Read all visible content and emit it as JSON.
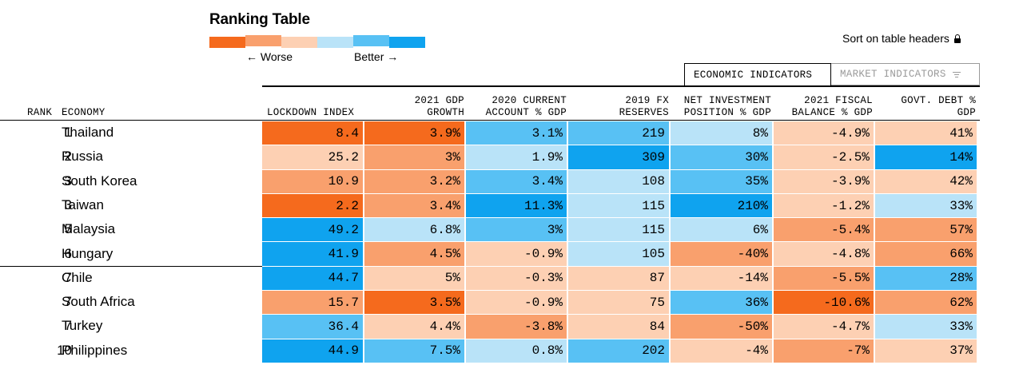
{
  "title": "Ranking Table",
  "legend": {
    "colors": [
      "#f56a1d",
      "#f9a06d",
      "#fdd0b3",
      "#b9e3f8",
      "#58c1f4",
      "#0fa3ef"
    ],
    "worse_label": "← Worse",
    "better_label": "Better →"
  },
  "sort_hint": "Sort on table headers",
  "tabs": {
    "economic": "ECONOMIC INDICATORS",
    "market": "MARKET INDICATORS"
  },
  "headers": {
    "rank": "RANK",
    "economy": "ECONOMY",
    "lockdown": "LOCKDOWN INDEX",
    "gdp": "2021 GDP\nGROWTH",
    "current": "2020 CURRENT\nACCOUNT % GDP",
    "fx": "2019 FX\nRESERVES",
    "niip": "NET INVESTMENT\nPOSITION % GDP",
    "fiscal": "2021 FISCAL\nBALANCE % GDP",
    "debt": "GOVT. DEBT %\nGDP"
  },
  "rows": [
    {
      "rank": "1",
      "economy": "Thailand",
      "cells": [
        "8.4",
        "3.9%",
        "3.1%",
        "219",
        "8%",
        "-4.9%",
        "41%"
      ],
      "colors": [
        "#f56a1d",
        "#f56a1d",
        "#58c1f4",
        "#58c1f4",
        "#b9e3f8",
        "#fdd0b3",
        "#fdd0b3"
      ]
    },
    {
      "rank": "2",
      "economy": "Russia",
      "cells": [
        "25.2",
        "3%",
        "1.9%",
        "309",
        "30%",
        "-2.5%",
        "14%"
      ],
      "colors": [
        "#fdd0b3",
        "#f9a06d",
        "#b9e3f8",
        "#0fa3ef",
        "#58c1f4",
        "#fdd0b3",
        "#0fa3ef"
      ]
    },
    {
      "rank": "3",
      "economy": "South Korea",
      "cells": [
        "10.9",
        "3.2%",
        "3.4%",
        "108",
        "35%",
        "-3.9%",
        "42%"
      ],
      "colors": [
        "#f9a06d",
        "#f9a06d",
        "#58c1f4",
        "#b9e3f8",
        "#58c1f4",
        "#fdd0b3",
        "#fdd0b3"
      ]
    },
    {
      "rank": "3",
      "economy": "Taiwan",
      "cells": [
        "2.2",
        "3.4%",
        "11.3%",
        "115",
        "210%",
        "-1.2%",
        "33%"
      ],
      "colors": [
        "#f56a1d",
        "#f9a06d",
        "#0fa3ef",
        "#b9e3f8",
        "#0fa3ef",
        "#fdd0b3",
        "#b9e3f8"
      ]
    },
    {
      "rank": "5",
      "economy": "Malaysia",
      "cells": [
        "49.2",
        "6.8%",
        "3%",
        "115",
        "6%",
        "-5.4%",
        "57%"
      ],
      "colors": [
        "#0fa3ef",
        "#b9e3f8",
        "#58c1f4",
        "#b9e3f8",
        "#b9e3f8",
        "#f9a06d",
        "#f9a06d"
      ]
    },
    {
      "rank": "6",
      "economy": "Hungary",
      "cells": [
        "41.9",
        "4.5%",
        "-0.9%",
        "105",
        "-40%",
        "-4.8%",
        "66%"
      ],
      "colors": [
        "#0fa3ef",
        "#f9a06d",
        "#fdd0b3",
        "#b9e3f8",
        "#f9a06d",
        "#fdd0b3",
        "#f9a06d"
      ]
    },
    {
      "rank": "7",
      "economy": "Chile",
      "cells": [
        "44.7",
        "5%",
        "-0.3%",
        "87",
        "-14%",
        "-5.5%",
        "28%"
      ],
      "colors": [
        "#0fa3ef",
        "#fdd0b3",
        "#fdd0b3",
        "#fdd0b3",
        "#fdd0b3",
        "#f9a06d",
        "#58c1f4"
      ]
    },
    {
      "rank": "7",
      "economy": "South Africa",
      "cells": [
        "15.7",
        "3.5%",
        "-0.9%",
        "75",
        "36%",
        "-10.6%",
        "62%"
      ],
      "colors": [
        "#f9a06d",
        "#f56a1d",
        "#fdd0b3",
        "#fdd0b3",
        "#58c1f4",
        "#f56a1d",
        "#f9a06d"
      ]
    },
    {
      "rank": "7",
      "economy": "Turkey",
      "cells": [
        "36.4",
        "4.4%",
        "-3.8%",
        "84",
        "-50%",
        "-4.7%",
        "33%"
      ],
      "colors": [
        "#58c1f4",
        "#fdd0b3",
        "#f9a06d",
        "#fdd0b3",
        "#f9a06d",
        "#fdd0b3",
        "#b9e3f8"
      ]
    },
    {
      "rank": "10",
      "economy": "Philippines",
      "cells": [
        "44.9",
        "7.5%",
        "0.8%",
        "202",
        "-4%",
        "-7%",
        "37%"
      ],
      "colors": [
        "#0fa3ef",
        "#58c1f4",
        "#b9e3f8",
        "#58c1f4",
        "#fdd0b3",
        "#f9a06d",
        "#fdd0b3"
      ]
    }
  ]
}
